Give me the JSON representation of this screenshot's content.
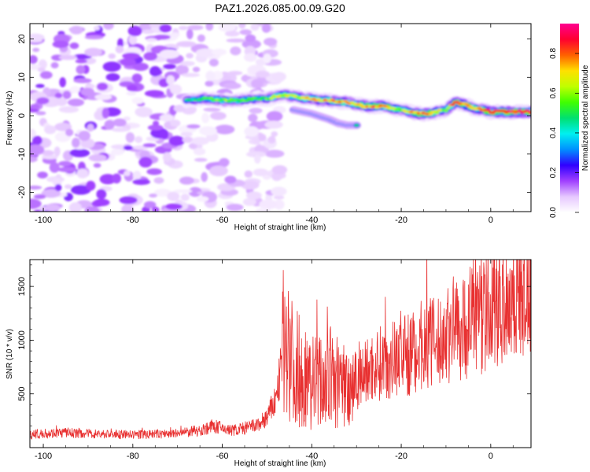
{
  "title": "PAZ1.2026.085.00.09.G20",
  "chart_data": [
    {
      "type": "heatmap",
      "name": "spectrogram",
      "xlabel": "Height of straight line (km)",
      "ylabel": "Frequency (Hz)",
      "xlim": [
        -103,
        9
      ],
      "ylim": [
        -25,
        24
      ],
      "xticks": [
        -100,
        -80,
        -60,
        -40,
        -20,
        0
      ],
      "xtick_labels": [
        "-100",
        "-80",
        "-60",
        "-40",
        "-20",
        "0"
      ],
      "yticks": [
        -20,
        -10,
        0,
        10,
        20
      ],
      "ytick_labels": [
        "-20",
        "-10",
        "0",
        "10",
        "20"
      ],
      "colorbar": {
        "label": "Normalized spectral amplitude",
        "range": [
          0,
          0.95
        ],
        "ticks": [
          0,
          0.2,
          0.4,
          0.6,
          0.8
        ],
        "tick_labels": [
          "0.0",
          "0.2",
          "0.4",
          "0.6",
          "0.8"
        ],
        "colors": [
          "#ffffff",
          "#e6c8ff",
          "#a040ff",
          "#3000ff",
          "#0090ff",
          "#00f0f0",
          "#00e070",
          "#40ff00",
          "#c0ff00",
          "#ffe000",
          "#ff6000",
          "#ff0030",
          "#ff0090"
        ]
      },
      "signal_track": {
        "x": [
          -68,
          -64,
          -60,
          -56,
          -52,
          -50,
          -48,
          -46,
          -44,
          -42,
          -40,
          -38,
          -36,
          -34,
          -32,
          -30,
          -28,
          -26,
          -24,
          -22,
          -20,
          -18,
          -16,
          -14,
          -12,
          -10,
          -8,
          -6,
          -4,
          -2,
          0,
          2,
          4,
          6,
          8,
          9
        ],
        "freq": [
          4,
          4.5,
          4,
          4,
          4.5,
          4.5,
          5,
          5.5,
          5,
          4.5,
          4.5,
          4,
          4,
          3.5,
          3.5,
          3,
          2.5,
          2.5,
          2.5,
          2,
          1.5,
          1,
          0.5,
          0.5,
          1,
          1.5,
          3.5,
          3,
          2,
          1.5,
          1,
          1,
          1,
          1,
          1,
          1
        ],
        "amplitude": [
          0.45,
          0.55,
          0.6,
          0.55,
          0.5,
          0.55,
          0.65,
          0.7,
          0.7,
          0.68,
          0.7,
          0.72,
          0.75,
          0.75,
          0.72,
          0.7,
          0.78,
          0.8,
          0.8,
          0.72,
          0.6,
          0.7,
          0.85,
          0.8,
          0.7,
          0.6,
          0.85,
          0.8,
          0.7,
          0.75,
          0.85,
          0.9,
          0.92,
          0.9,
          0.9,
          0.88
        ]
      },
      "secondary_track": {
        "x": [
          -44,
          -40,
          -36,
          -34,
          -32,
          -30
        ],
        "freq": [
          1.5,
          0.5,
          -1,
          -2,
          -2.5,
          -2.5
        ]
      },
      "noise_region_x": [
        -103,
        -47
      ]
    },
    {
      "type": "line",
      "name": "snr",
      "xlabel": "Height of straight line (km)",
      "ylabel": "SNR (10 * v/v)",
      "xlim": [
        -103,
        9
      ],
      "ylim": [
        0,
        1750
      ],
      "xticks": [
        -100,
        -80,
        -60,
        -40,
        -20,
        0
      ],
      "xtick_labels": [
        "-100",
        "-80",
        "-60",
        "-40",
        "-20",
        "0"
      ],
      "yticks": [
        500,
        1000,
        1500
      ],
      "ytick_labels": [
        "500",
        "1000",
        "1500"
      ],
      "color": "#e83030",
      "series": [
        {
          "name": "SNR",
          "x": [
            -103,
            -100,
            -95,
            -90,
            -85,
            -80,
            -75,
            -70,
            -65,
            -62,
            -60,
            -58,
            -55,
            -52,
            -50,
            -48,
            -47,
            -46,
            -45,
            -44,
            -43,
            -42,
            -40,
            -38,
            -36,
            -34,
            -32,
            -30,
            -28,
            -26,
            -24,
            -22,
            -20,
            -18,
            -16,
            -14,
            -12,
            -10,
            -8,
            -6,
            -4,
            -2,
            0,
            2,
            4,
            6,
            8,
            9
          ],
          "y": [
            120,
            130,
            140,
            130,
            125,
            120,
            125,
            130,
            160,
            200,
            180,
            160,
            180,
            210,
            280,
            450,
            700,
            1100,
            950,
            700,
            750,
            650,
            600,
            620,
            650,
            600,
            580,
            640,
            700,
            760,
            800,
            820,
            900,
            850,
            950,
            1000,
            950,
            1050,
            1150,
            1100,
            1250,
            1200,
            1300,
            1350,
            1400,
            1450,
            1400,
            1550
          ]
        }
      ]
    }
  ]
}
